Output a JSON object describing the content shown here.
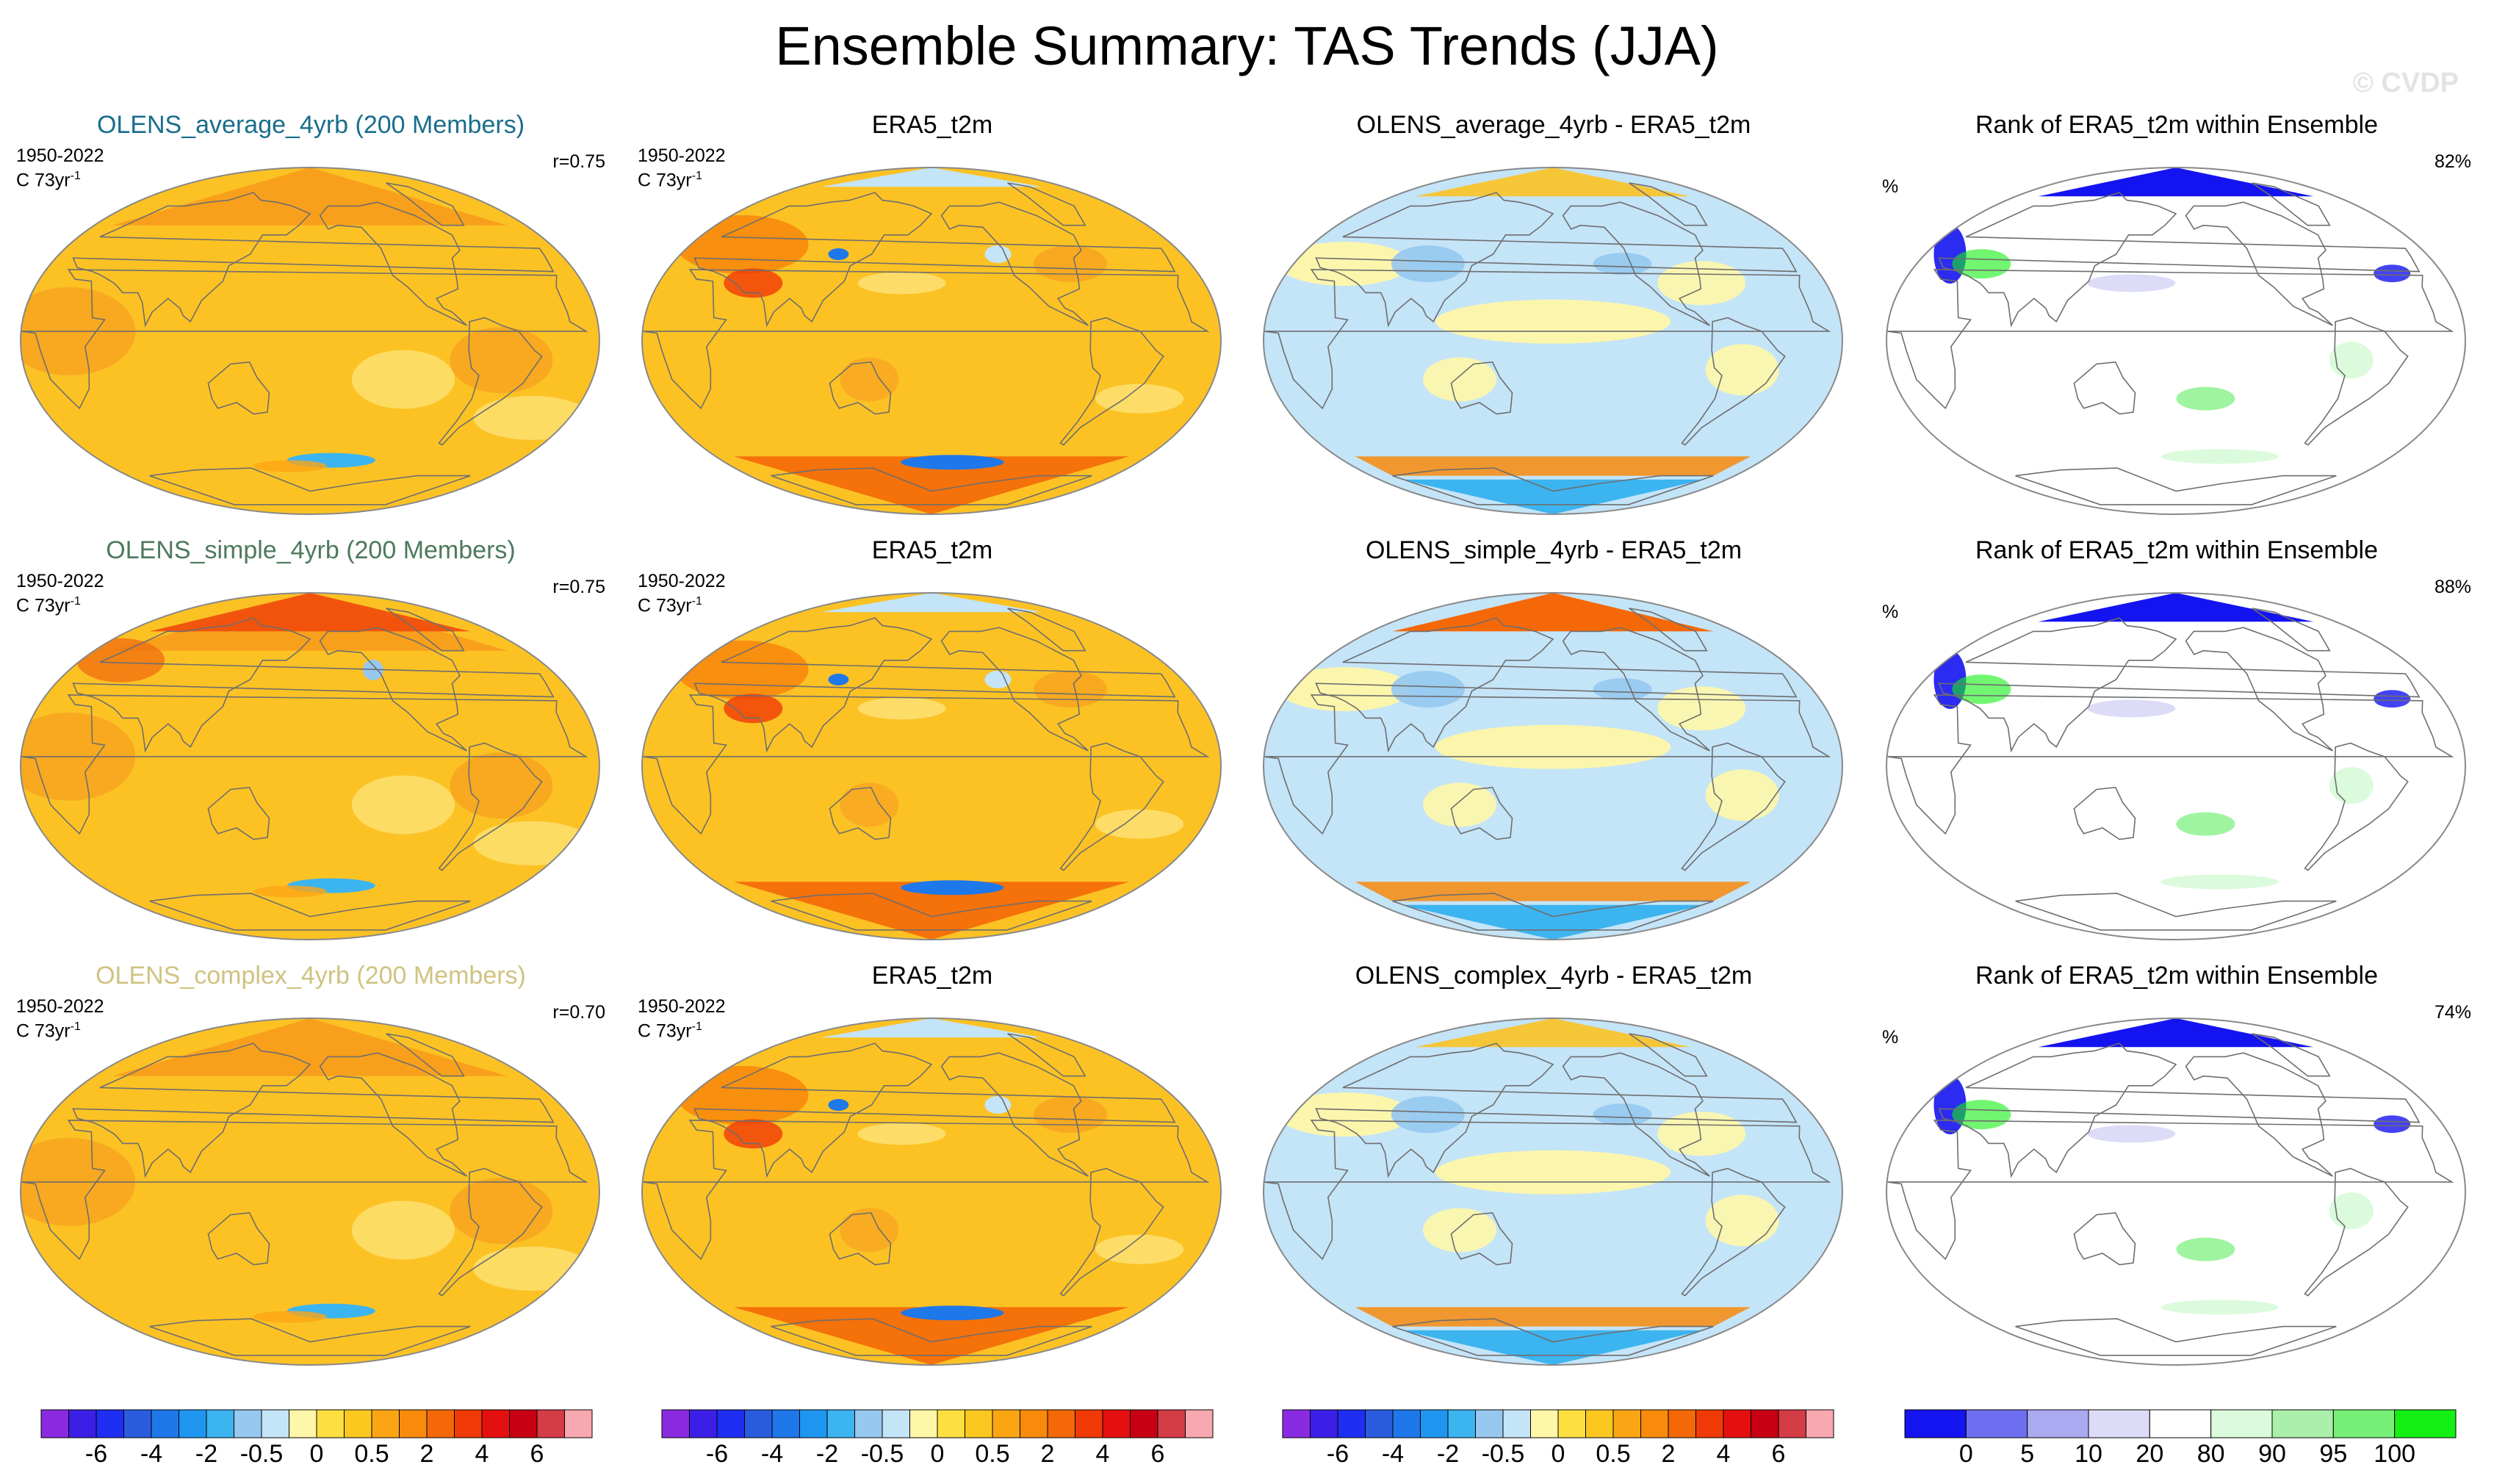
{
  "title": "Ensemble Summary: TAS Trends (JJA)",
  "watermark": "© CVDP",
  "colors": {
    "model_title_average": "#1a6d8c",
    "model_title_simple": "#4c7a5c",
    "model_title_complex": "#cfc382"
  },
  "chart_data": [
    {
      "type": "heatmap",
      "row": 0,
      "panel": "ensemble",
      "title": "OLENS_average_4yrb (200 Members)",
      "period": "1950-2022",
      "units": "C 73yr",
      "units_exp": "-1",
      "r_label": "r=0.75",
      "map_style": "ensemble"
    },
    {
      "type": "heatmap",
      "row": 0,
      "panel": "obs",
      "title": "ERA5_t2m",
      "period": "1950-2022",
      "units": "C 73yr",
      "units_exp": "-1",
      "map_style": "obs"
    },
    {
      "type": "heatmap",
      "row": 0,
      "panel": "difference",
      "title": "OLENS_average_4yrb - ERA5_t2m",
      "map_style": "diff"
    },
    {
      "type": "heatmap",
      "row": 0,
      "panel": "rank",
      "title": "Rank of ERA5_t2m within Ensemble",
      "pct_label": "82%",
      "pct_symbol": "%",
      "map_style": "rank"
    },
    {
      "type": "heatmap",
      "row": 1,
      "panel": "ensemble",
      "title": "OLENS_simple_4yrb (200 Members)",
      "period": "1950-2022",
      "units": "C 73yr",
      "units_exp": "-1",
      "r_label": "r=0.75",
      "map_style": "ensemble_warm"
    },
    {
      "type": "heatmap",
      "row": 1,
      "panel": "obs",
      "title": "ERA5_t2m",
      "period": "1950-2022",
      "units": "C 73yr",
      "units_exp": "-1",
      "map_style": "obs"
    },
    {
      "type": "heatmap",
      "row": 1,
      "panel": "difference",
      "title": "OLENS_simple_4yrb - ERA5_t2m",
      "map_style": "diff_warm"
    },
    {
      "type": "heatmap",
      "row": 1,
      "panel": "rank",
      "title": "Rank of ERA5_t2m within Ensemble",
      "pct_label": "88%",
      "pct_symbol": "%",
      "map_style": "rank"
    },
    {
      "type": "heatmap",
      "row": 2,
      "panel": "ensemble",
      "title": "OLENS_complex_4yrb (200 Members)",
      "period": "1950-2022",
      "units": "C 73yr",
      "units_exp": "-1",
      "r_label": "r=0.70",
      "map_style": "ensemble"
    },
    {
      "type": "heatmap",
      "row": 2,
      "panel": "obs",
      "title": "ERA5_t2m",
      "period": "1950-2022",
      "units": "C 73yr",
      "units_exp": "-1",
      "map_style": "obs"
    },
    {
      "type": "heatmap",
      "row": 2,
      "panel": "difference",
      "title": "OLENS_complex_4yrb - ERA5_t2m",
      "map_style": "diff"
    },
    {
      "type": "heatmap",
      "row": 2,
      "panel": "rank",
      "title": "Rank of ERA5_t2m within Ensemble",
      "pct_label": "74%",
      "pct_symbol": "%",
      "map_style": "rank"
    }
  ],
  "colorbars": {
    "trend": {
      "colors": [
        "#8a2be2",
        "#3c1fe6",
        "#1e2ef2",
        "#2a5ce0",
        "#1e78ea",
        "#1e96f0",
        "#3cb4f0",
        "#96c8f0",
        "#c4e4f8",
        "#fff7a8",
        "#fde040",
        "#fcc820",
        "#fca514",
        "#f88a0c",
        "#f46808",
        "#f03a08",
        "#e41010",
        "#c80014",
        "#d43c46",
        "#f8a8b0"
      ],
      "tick_labels": [
        "-6",
        "-4",
        "-2",
        "-0.5",
        "0",
        "0.5",
        "2",
        "4",
        "6"
      ]
    },
    "rank": {
      "colors": [
        "#1414f0",
        "#6e6ef0",
        "#aaaaf0",
        "#dcdcf8",
        "#ffffff",
        "#dcfadc",
        "#aaf0aa",
        "#78f078",
        "#14f014"
      ],
      "tick_labels": [
        "0",
        "5",
        "10",
        "20",
        "80",
        "90",
        "95",
        "100"
      ]
    }
  }
}
